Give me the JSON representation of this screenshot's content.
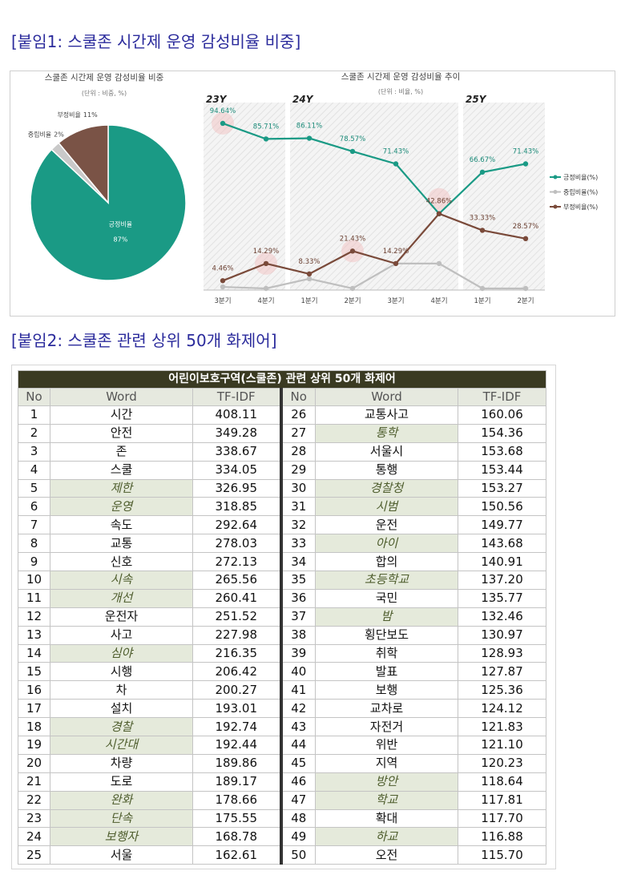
{
  "heading1": "[붙임1: 스쿨존 시간제 운영 감성비율 비중]",
  "chart_data": [
    {
      "type": "pie",
      "title": "스쿨존 시간제 운영 감성비율 비중",
      "subtitle": "(단위 : 비중, %)",
      "categories": [
        "긍정비율",
        "중립비율",
        "부정비율"
      ],
      "values": [
        87,
        2,
        11
      ],
      "value_labels": [
        "87%",
        "2%",
        "11%"
      ],
      "colors": [
        "#1a9a85",
        "#c9c9c9",
        "#7a5346"
      ]
    },
    {
      "type": "line",
      "title": "스쿨존 시간제 운영 감성비율 추이",
      "subtitle": "(단위 : 비율, %)",
      "categories": [
        "3분기",
        "4분기",
        "1분기",
        "2분기",
        "3분기",
        "4분기",
        "1분기",
        "2분기"
      ],
      "year_labels": [
        "23Y",
        null,
        "24Y",
        null,
        null,
        null,
        "25Y",
        null
      ],
      "ylim": [
        0,
        100
      ],
      "series": [
        {
          "name": "긍정비율(%)",
          "color": "#1a9a85",
          "values": [
            94.64,
            85.71,
            86.11,
            78.57,
            71.43,
            42.86,
            66.67,
            71.43
          ],
          "value_labels": [
            "94.64%",
            "85.71%",
            "86.11%",
            "78.57%",
            "71.43%",
            null,
            "66.67%",
            "71.43%"
          ]
        },
        {
          "name": "중립비율(%)",
          "color": "#bfbfbf",
          "values": [
            0.9,
            0,
            5.56,
            0,
            14.29,
            14.29,
            0,
            0
          ]
        },
        {
          "name": "부정비율(%)",
          "color": "#7a4a3a",
          "values": [
            4.46,
            14.29,
            8.33,
            21.43,
            14.29,
            42.86,
            33.33,
            28.57
          ],
          "value_labels": [
            "4.46%",
            "14.29%",
            "8.33%",
            "21.43%",
            "14.29%",
            "42.86%",
            "33.33%",
            "28.57%"
          ]
        }
      ]
    }
  ],
  "heading2": "[붙임2: 스쿨존 관련 상위 50개 화제어]",
  "table": {
    "title": "어린이보호구역(스쿨존) 관련 상위 50개 화제어",
    "columns": [
      "No",
      "Word",
      "TF-IDF",
      "No",
      "Word",
      "TF-IDF"
    ],
    "rows": [
      {
        "no": 1,
        "word": "시간",
        "tfidf": "408.11"
      },
      {
        "no": 2,
        "word": "안전",
        "tfidf": "349.28"
      },
      {
        "no": 3,
        "word": "존",
        "tfidf": "338.67"
      },
      {
        "no": 4,
        "word": "스쿨",
        "tfidf": "334.05"
      },
      {
        "no": 5,
        "word": "제한",
        "tfidf": "326.95",
        "highlight": true
      },
      {
        "no": 6,
        "word": "운영",
        "tfidf": "318.85",
        "highlight": true
      },
      {
        "no": 7,
        "word": "속도",
        "tfidf": "292.64"
      },
      {
        "no": 8,
        "word": "교통",
        "tfidf": "278.03"
      },
      {
        "no": 9,
        "word": "신호",
        "tfidf": "272.13"
      },
      {
        "no": 10,
        "word": "시속",
        "tfidf": "265.56",
        "highlight": true
      },
      {
        "no": 11,
        "word": "개선",
        "tfidf": "260.41",
        "highlight": true
      },
      {
        "no": 12,
        "word": "운전자",
        "tfidf": "251.52"
      },
      {
        "no": 13,
        "word": "사고",
        "tfidf": "227.98"
      },
      {
        "no": 14,
        "word": "심야",
        "tfidf": "216.35",
        "highlight": true
      },
      {
        "no": 15,
        "word": "시행",
        "tfidf": "206.42"
      },
      {
        "no": 16,
        "word": "차",
        "tfidf": "200.27"
      },
      {
        "no": 17,
        "word": "설치",
        "tfidf": "193.01"
      },
      {
        "no": 18,
        "word": "경찰",
        "tfidf": "192.74",
        "highlight": true
      },
      {
        "no": 19,
        "word": "시간대",
        "tfidf": "192.44",
        "highlight": true
      },
      {
        "no": 20,
        "word": "차량",
        "tfidf": "189.86"
      },
      {
        "no": 21,
        "word": "도로",
        "tfidf": "189.17"
      },
      {
        "no": 22,
        "word": "완화",
        "tfidf": "178.66",
        "highlight": true
      },
      {
        "no": 23,
        "word": "단속",
        "tfidf": "175.55",
        "highlight": true
      },
      {
        "no": 24,
        "word": "보행자",
        "tfidf": "168.78",
        "highlight": true
      },
      {
        "no": 25,
        "word": "서울",
        "tfidf": "162.61"
      },
      {
        "no": 26,
        "word": "교통사고",
        "tfidf": "160.06"
      },
      {
        "no": 27,
        "word": "통학",
        "tfidf": "154.36",
        "highlight": true
      },
      {
        "no": 28,
        "word": "서울시",
        "tfidf": "153.68"
      },
      {
        "no": 29,
        "word": "통행",
        "tfidf": "153.44"
      },
      {
        "no": 30,
        "word": "경찰청",
        "tfidf": "153.27",
        "highlight": true
      },
      {
        "no": 31,
        "word": "시범",
        "tfidf": "150.56",
        "highlight": true
      },
      {
        "no": 32,
        "word": "운전",
        "tfidf": "149.77"
      },
      {
        "no": 33,
        "word": "아이",
        "tfidf": "143.68",
        "highlight": true
      },
      {
        "no": 34,
        "word": "합의",
        "tfidf": "140.91"
      },
      {
        "no": 35,
        "word": "초등학교",
        "tfidf": "137.20",
        "highlight": true
      },
      {
        "no": 36,
        "word": "국민",
        "tfidf": "135.77"
      },
      {
        "no": 37,
        "word": "밤",
        "tfidf": "132.46",
        "highlight": true
      },
      {
        "no": 38,
        "word": "횡단보도",
        "tfidf": "130.97"
      },
      {
        "no": 39,
        "word": "취학",
        "tfidf": "128.93"
      },
      {
        "no": 40,
        "word": "발표",
        "tfidf": "127.87"
      },
      {
        "no": 41,
        "word": "보행",
        "tfidf": "125.36"
      },
      {
        "no": 42,
        "word": "교차로",
        "tfidf": "124.12"
      },
      {
        "no": 43,
        "word": "자전거",
        "tfidf": "121.83"
      },
      {
        "no": 44,
        "word": "위반",
        "tfidf": "121.10"
      },
      {
        "no": 45,
        "word": "지역",
        "tfidf": "120.23"
      },
      {
        "no": 46,
        "word": "방안",
        "tfidf": "118.64",
        "highlight": true
      },
      {
        "no": 47,
        "word": "학교",
        "tfidf": "117.81",
        "highlight": true
      },
      {
        "no": 48,
        "word": "확대",
        "tfidf": "117.70"
      },
      {
        "no": 49,
        "word": "하교",
        "tfidf": "116.88",
        "highlight": true
      },
      {
        "no": 50,
        "word": "오전",
        "tfidf": "115.70"
      }
    ]
  }
}
